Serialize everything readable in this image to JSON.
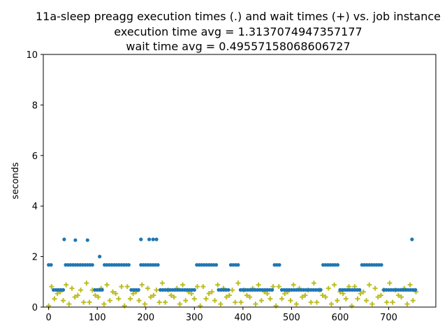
{
  "chart_data": {
    "type": "scatter",
    "title_lines": [
      "11a-sleep preagg execution times (.) and wait times (+) vs. job instance",
      "execution time avg = 1.3137074947357177",
      "wait time avg = 0.49557158068606727"
    ],
    "xlabel": "",
    "ylabel": "seconds",
    "xlim": [
      -11,
      797
    ],
    "ylim": [
      0,
      10
    ],
    "xticks": [
      0,
      100,
      200,
      300,
      400,
      500,
      600,
      700
    ],
    "yticks": [
      0,
      2,
      4,
      6,
      8,
      10
    ],
    "grid": false,
    "series": [
      {
        "name": "execution times",
        "marker": "dot",
        "color": "#1f77b4",
        "note": "values read from the plot; generated as base levels with listed outliers",
        "base_low_ranges": [
          [
            10,
            30
          ],
          [
            95,
            110
          ],
          [
            170,
            185
          ],
          [
            230,
            300
          ],
          [
            350,
            370
          ],
          [
            395,
            460
          ],
          [
            480,
            560
          ],
          [
            600,
            640
          ],
          [
            690,
            760
          ]
        ],
        "base_low_value": 0.68,
        "base_high_value": 1.67,
        "count": 760,
        "outliers": [
          {
            "x": 32,
            "y": 2.68
          },
          {
            "x": 55,
            "y": 2.65
          },
          {
            "x": 80,
            "y": 2.65
          },
          {
            "x": 105,
            "y": 2.0
          },
          {
            "x": 190,
            "y": 2.68
          },
          {
            "x": 207,
            "y": 2.68
          },
          {
            "x": 215,
            "y": 2.68
          },
          {
            "x": 222,
            "y": 2.68
          },
          {
            "x": 748,
            "y": 2.68
          }
        ]
      },
      {
        "name": "wait times",
        "marker": "plus",
        "color": "#bcbd22",
        "note": "values read from the plot; oscillating between ~0.05 and ~0.95",
        "count": 760
      }
    ]
  }
}
